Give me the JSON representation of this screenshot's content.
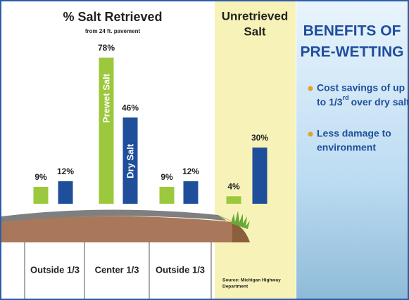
{
  "chart_data": [
    {
      "type": "bar",
      "title": "% Salt Retrieved",
      "subtitle": "from 24 ft. pavement",
      "categories": [
        "Outside 1/3",
        "Center 1/3",
        "Outside 1/3"
      ],
      "series": [
        {
          "name": "Prewet Salt",
          "color": "#9bc83c",
          "values": [
            9,
            78,
            9
          ],
          "value_labels": [
            "9%",
            "78%",
            "9%"
          ]
        },
        {
          "name": "Dry Salt",
          "color": "#1f4e9b",
          "values": [
            12,
            46,
            12
          ],
          "value_labels": [
            "12%",
            "46%",
            "12%"
          ]
        }
      ]
    },
    {
      "type": "bar",
      "title_lines": [
        "Unretrieved",
        "Salt"
      ],
      "values": [
        4,
        30
      ],
      "value_labels": [
        "4%",
        "30%"
      ],
      "colors": [
        "#9bc83c",
        "#1f4e9b"
      ],
      "source_lines": [
        "Source: Michigan Highway",
        "Department"
      ]
    }
  ],
  "benefits": {
    "title_lines": [
      "BENEFITS OF",
      "PRE-WETTING"
    ],
    "bullets": [
      {
        "lines": [
          "Cost savings of up",
          "to 1/3"
        ],
        "superscript": "rd",
        "tail": "over dry salt"
      },
      {
        "lines": [
          "Less damage to",
          "environment"
        ]
      }
    ]
  }
}
